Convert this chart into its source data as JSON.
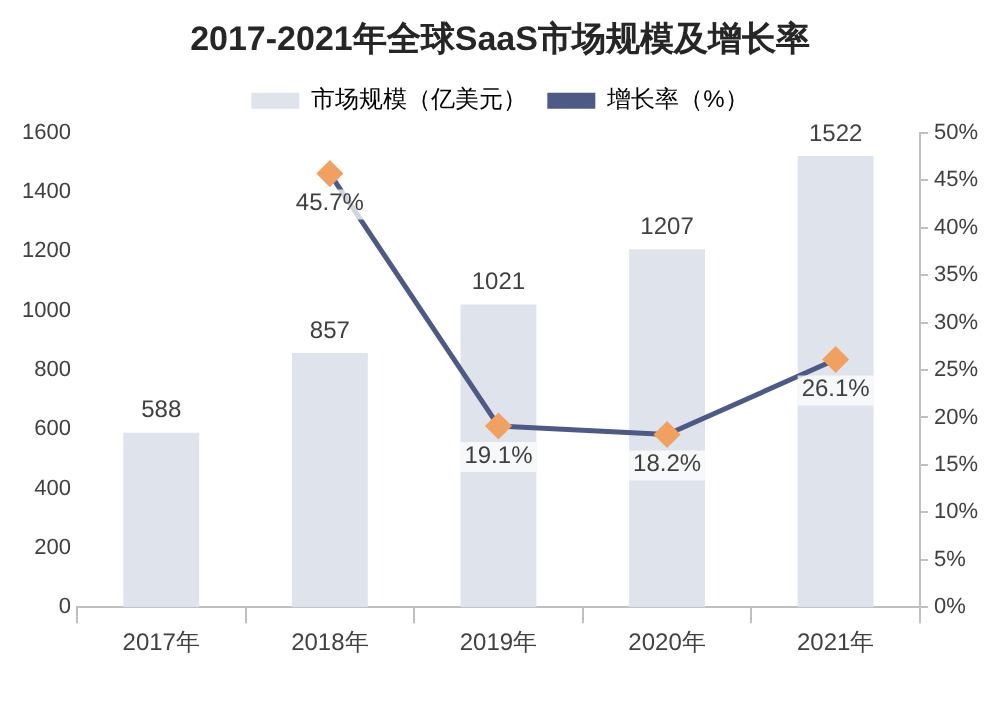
{
  "chart_data": {
    "type": "bar",
    "title": "2017-2021年全球SaaS市场规模及增长率",
    "categories": [
      "2017年",
      "2018年",
      "2019年",
      "2020年",
      "2021年"
    ],
    "series": [
      {
        "name": "市场规模（亿美元）",
        "color": "#dfe3ec",
        "values": [
          588,
          857,
          1021,
          1207,
          1522
        ],
        "value_labels": [
          "588",
          "857",
          "1021",
          "1207",
          "1522"
        ]
      },
      {
        "name": "增长率（%）",
        "type": "line",
        "axis": "y2",
        "color": "#4e5a86",
        "marker": "diamond",
        "values": [
          null,
          45.7,
          19.1,
          18.2,
          26.1
        ],
        "value_labels": [
          null,
          "45.7%",
          "19.1%",
          "18.2%",
          "26.1%"
        ]
      }
    ],
    "ylim": [
      0,
      1600
    ],
    "yticks": [
      0,
      200,
      400,
      600,
      800,
      1000,
      1200,
      1400,
      1600
    ],
    "y2lim": [
      0,
      50
    ],
    "y2ticks": [
      {
        "value": 0,
        "label": "0%"
      },
      {
        "value": 5,
        "label": "5%"
      },
      {
        "value": 10,
        "label": "10%"
      },
      {
        "value": 15,
        "label": "15%"
      },
      {
        "value": 20,
        "label": "20%"
      },
      {
        "value": 25,
        "label": "25%"
      },
      {
        "value": 30,
        "label": "30%"
      },
      {
        "value": 35,
        "label": "35%"
      },
      {
        "value": 40,
        "label": "40%"
      },
      {
        "value": 45,
        "label": "45%"
      },
      {
        "value": 50,
        "label": "50%"
      }
    ],
    "grid": false,
    "legend": "top"
  }
}
